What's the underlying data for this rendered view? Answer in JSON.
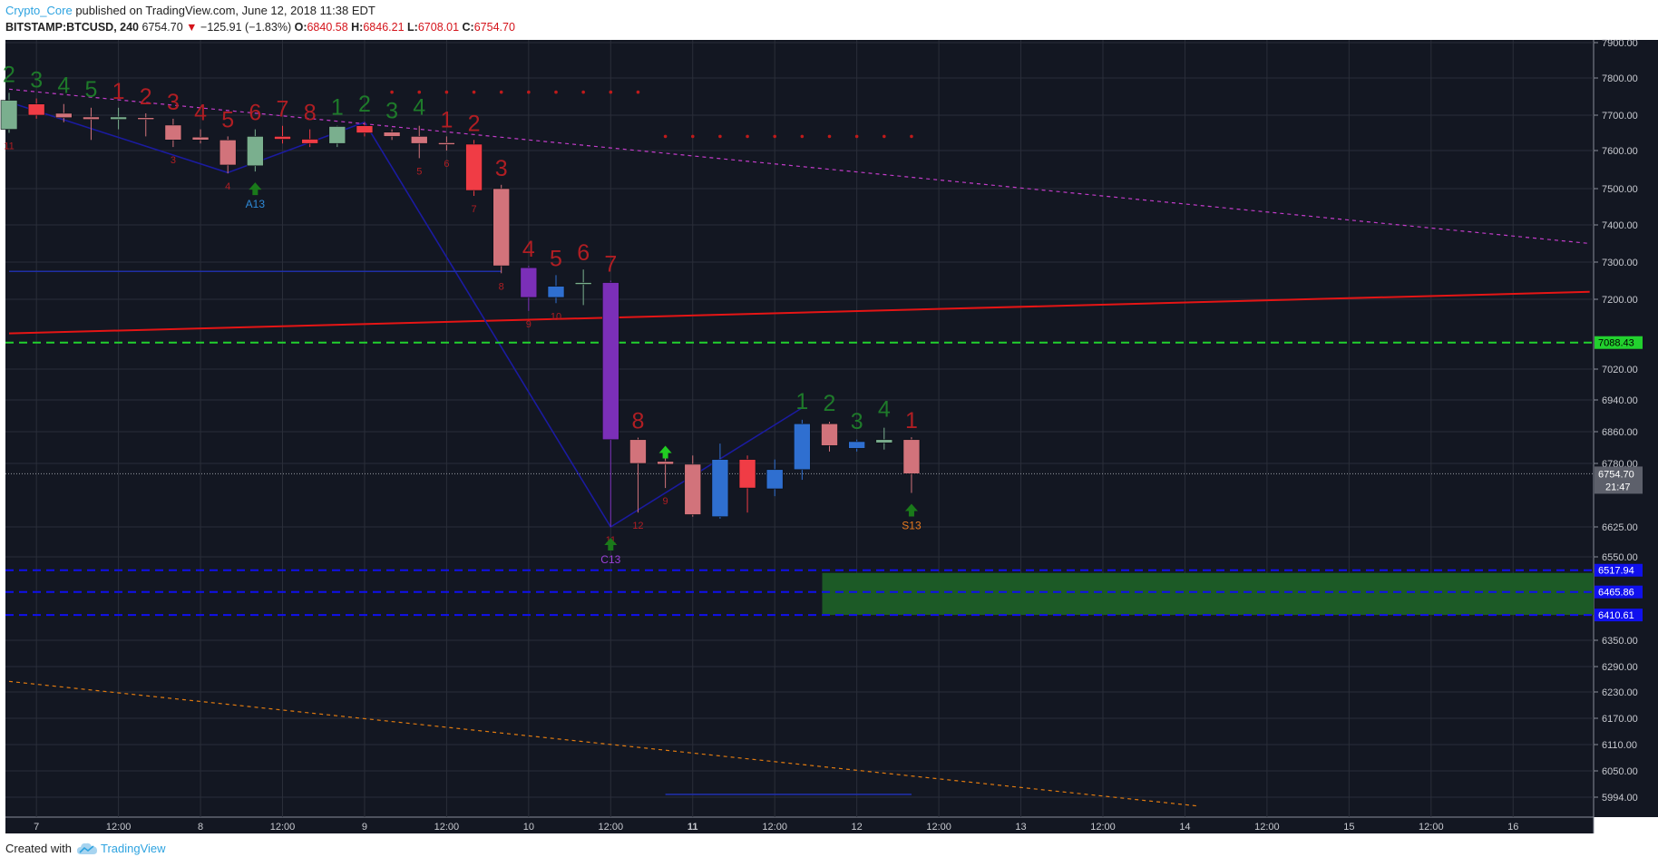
{
  "header": {
    "author": "Crypto_Core",
    "published_text": " published on TradingView.com, June 12, 2018 11:38 EDT",
    "symbol": "BITSTAMP:BTCUSD, 240",
    "last": "6754.70",
    "change": "−125.91 (−1.83%)",
    "open_label": "O:",
    "open": "6840.58",
    "high_label": "H:",
    "high": "6846.21",
    "low_label": "L:",
    "low": "6708.01",
    "close_label": "C:",
    "close": "6754.70"
  },
  "footer": {
    "created_with": "Created with",
    "brand": "TradingView"
  },
  "colors": {
    "background": "#131722",
    "grid": "#2a2e39",
    "bull": "#7aaf8e",
    "bear": "#d2737b",
    "red_bar": "#f03c45",
    "purple_bar": "#7b2fb8",
    "blue_bar": "#2f6fd0",
    "td_green": "#1e7a2a",
    "td_red": "#b01e23",
    "price_label": "#5d606b",
    "level_green": "#22d12e",
    "level_blue": "#1010ee"
  },
  "chart_data": {
    "type": "candlestick",
    "symbol": "BITSTAMP:BTCUSD",
    "interval": "240",
    "y_ticks": [
      7900,
      7800,
      7700,
      7600,
      7500,
      7400,
      7300,
      7200,
      7020,
      6940,
      6860,
      6780,
      6625,
      6550,
      6350,
      6290,
      6230,
      6170,
      6110,
      6050,
      5994
    ],
    "y_tick_labels": [
      "7900.00",
      "7800.00",
      "7700.00",
      "7600.00",
      "7500.00",
      "7400.00",
      "7300.00",
      "7200.00",
      "7020.00",
      "6940.00",
      "6860.00",
      "6780.00",
      "6625.00",
      "6550.00",
      "6350.00",
      "6290.00",
      "6230.00",
      "6170.00",
      "6110.00",
      "6050.00",
      "5994.00"
    ],
    "x_tick_labels": [
      "7",
      "12:00",
      "8",
      "12:00",
      "9",
      "12:00",
      "10",
      "12:00",
      "11",
      "12:00",
      "12",
      "12:00",
      "13",
      "12:00",
      "14",
      "12:00",
      "15",
      "12:00",
      "16"
    ],
    "x_tick_bars": [
      1,
      4,
      7,
      10,
      13,
      16,
      19,
      22,
      25,
      28,
      31,
      34,
      37,
      40,
      43,
      46,
      49,
      52,
      55
    ],
    "x_range": [
      0,
      57.8
    ],
    "candles": [
      {
        "i": 0,
        "o": 7660,
        "h": 7760,
        "l": 7650,
        "c": 7740,
        "color": "bull"
      },
      {
        "i": 1,
        "o": 7730,
        "h": 7745,
        "l": 7690,
        "c": 7700,
        "color": "red_bar"
      },
      {
        "i": 2,
        "o": 7705,
        "h": 7730,
        "l": 7680,
        "c": 7693,
        "color": "bear"
      },
      {
        "i": 3,
        "o": 7695,
        "h": 7720,
        "l": 7630,
        "c": 7688,
        "color": "bear"
      },
      {
        "i": 4,
        "o": 7688,
        "h": 7720,
        "l": 7660,
        "c": 7695,
        "color": "bull"
      },
      {
        "i": 5,
        "o": 7693,
        "h": 7705,
        "l": 7640,
        "c": 7690,
        "color": "bear"
      },
      {
        "i": 6,
        "o": 7672,
        "h": 7690,
        "l": 7610,
        "c": 7630,
        "color": "bear"
      },
      {
        "i": 7,
        "o": 7638,
        "h": 7660,
        "l": 7620,
        "c": 7630,
        "color": "bear"
      },
      {
        "i": 8,
        "o": 7630,
        "h": 7640,
        "l": 7540,
        "c": 7562,
        "color": "bear"
      },
      {
        "i": 9,
        "o": 7560,
        "h": 7660,
        "l": 7545,
        "c": 7640,
        "color": "bull"
      },
      {
        "i": 10,
        "o": 7640,
        "h": 7670,
        "l": 7620,
        "c": 7632,
        "color": "red_bar"
      },
      {
        "i": 11,
        "o": 7632,
        "h": 7660,
        "l": 7610,
        "c": 7620,
        "color": "red_bar"
      },
      {
        "i": 12,
        "o": 7620,
        "h": 7670,
        "l": 7610,
        "c": 7668,
        "color": "bull"
      },
      {
        "i": 13,
        "o": 7670,
        "h": 7680,
        "l": 7640,
        "c": 7650,
        "color": "red_bar"
      },
      {
        "i": 14,
        "o": 7652,
        "h": 7660,
        "l": 7630,
        "c": 7640,
        "color": "bear"
      },
      {
        "i": 15,
        "o": 7640,
        "h": 7670,
        "l": 7580,
        "c": 7620,
        "color": "bear"
      },
      {
        "i": 16,
        "o": 7622,
        "h": 7640,
        "l": 7600,
        "c": 7618,
        "color": "bear"
      },
      {
        "i": 17,
        "o": 7618,
        "h": 7630,
        "l": 7480,
        "c": 7495,
        "color": "red_bar"
      },
      {
        "i": 18,
        "o": 7500,
        "h": 7510,
        "l": 7270,
        "c": 7290,
        "color": "bear"
      },
      {
        "i": 19,
        "o": 7285,
        "h": 7290,
        "l": 7170,
        "c": 7205,
        "color": "purple_bar"
      },
      {
        "i": 20,
        "o": 7205,
        "h": 7265,
        "l": 7190,
        "c": 7235,
        "color": "blue_bar"
      },
      {
        "i": 21,
        "o": 7245,
        "h": 7280,
        "l": 7185,
        "c": 7245,
        "color": "bull"
      },
      {
        "i": 22,
        "o": 7245,
        "h": 7250,
        "l": 6625,
        "c": 6840,
        "color": "purple_bar"
      },
      {
        "i": 23,
        "o": 6840,
        "h": 6845,
        "l": 6660,
        "c": 6780,
        "color": "bear"
      },
      {
        "i": 24,
        "o": 6785,
        "h": 6820,
        "l": 6720,
        "c": 6778,
        "color": "bear"
      },
      {
        "i": 25,
        "o": 6778,
        "h": 6800,
        "l": 6650,
        "c": 6655,
        "color": "bear"
      },
      {
        "i": 26,
        "o": 6650,
        "h": 6830,
        "l": 6645,
        "c": 6790,
        "color": "blue_bar"
      },
      {
        "i": 27,
        "o": 6790,
        "h": 6800,
        "l": 6660,
        "c": 6720,
        "color": "red_bar"
      },
      {
        "i": 28,
        "o": 6718,
        "h": 6790,
        "l": 6700,
        "c": 6765,
        "color": "blue_bar"
      },
      {
        "i": 29,
        "o": 6765,
        "h": 6890,
        "l": 6740,
        "c": 6880,
        "color": "blue_bar"
      },
      {
        "i": 30,
        "o": 6880,
        "h": 6885,
        "l": 6810,
        "c": 6825,
        "color": "bear"
      },
      {
        "i": 31,
        "o": 6818,
        "h": 6840,
        "l": 6810,
        "c": 6835,
        "color": "blue_bar"
      },
      {
        "i": 32,
        "o": 6832,
        "h": 6870,
        "l": 6815,
        "c": 6840,
        "color": "bull"
      },
      {
        "i": 33,
        "o": 6840,
        "h": 6846,
        "l": 6708,
        "c": 6755,
        "color": "bear"
      }
    ],
    "horizontal_levels": [
      {
        "price": 7088.43,
        "label": "7088.43",
        "style": "dashed-green"
      },
      {
        "price": 6517.94,
        "label": "6517.94",
        "style": "dashed-blue"
      },
      {
        "price": 6465.86,
        "label": "6465.86",
        "style": "dashed-blue"
      },
      {
        "price": 6410.61,
        "label": "6410.61",
        "style": "dashed-blue"
      }
    ],
    "last_price": {
      "label": "6754.70",
      "countdown": "21:47",
      "price": 6754.7
    },
    "zone": {
      "from_bar": 30,
      "top": 6517.94,
      "bottom": 6410.61
    },
    "td_labels": [
      {
        "i": 0,
        "t": "2",
        "c": "g"
      },
      {
        "i": 1,
        "t": "3",
        "c": "g"
      },
      {
        "i": 2,
        "t": "4",
        "c": "g"
      },
      {
        "i": 3,
        "t": "5",
        "c": "g"
      },
      {
        "i": 4,
        "t": "1",
        "c": "r"
      },
      {
        "i": 5,
        "t": "2",
        "c": "r"
      },
      {
        "i": 6,
        "t": "3",
        "c": "r"
      },
      {
        "i": 7,
        "t": "4",
        "c": "r"
      },
      {
        "i": 8,
        "t": "5",
        "c": "r"
      },
      {
        "i": 9,
        "t": "6",
        "c": "r"
      },
      {
        "i": 10,
        "t": "7",
        "c": "r"
      },
      {
        "i": 11,
        "t": "8",
        "c": "r"
      },
      {
        "i": 12,
        "t": "1",
        "c": "g"
      },
      {
        "i": 13,
        "t": "2",
        "c": "g"
      },
      {
        "i": 14,
        "t": "3",
        "c": "g"
      },
      {
        "i": 15,
        "t": "4",
        "c": "g"
      },
      {
        "i": 16,
        "t": "1",
        "c": "r"
      },
      {
        "i": 17,
        "t": "2",
        "c": "r"
      },
      {
        "i": 18,
        "t": "3",
        "c": "r"
      },
      {
        "i": 19,
        "t": "4",
        "c": "r"
      },
      {
        "i": 20,
        "t": "5",
        "c": "r"
      },
      {
        "i": 21,
        "t": "6",
        "c": "r"
      },
      {
        "i": 22,
        "t": "7",
        "c": "r"
      },
      {
        "i": 23,
        "t": "8",
        "c": "r"
      },
      {
        "i": 29,
        "t": "1",
        "c": "g"
      },
      {
        "i": 30,
        "t": "2",
        "c": "g"
      },
      {
        "i": 31,
        "t": "3",
        "c": "g"
      },
      {
        "i": 32,
        "t": "4",
        "c": "g"
      },
      {
        "i": 33,
        "t": "1",
        "c": "r"
      }
    ],
    "small_counts": [
      {
        "i": 0,
        "t": "11"
      },
      {
        "i": 6,
        "t": "3"
      },
      {
        "i": 8,
        "t": "4"
      },
      {
        "i": 15,
        "t": "5"
      },
      {
        "i": 16,
        "t": "6"
      },
      {
        "i": 17,
        "t": "7"
      },
      {
        "i": 18,
        "t": "8"
      },
      {
        "i": 19,
        "t": "9"
      },
      {
        "i": 20,
        "t": "10"
      },
      {
        "i": 22,
        "t": "11"
      },
      {
        "i": 23,
        "t": "12"
      },
      {
        "i": 24,
        "t": "9"
      }
    ],
    "signals": [
      {
        "i": 9,
        "t": "A13",
        "color": "#2e8ad8"
      },
      {
        "i": 22,
        "t": "C13",
        "color": "#9b3fd8"
      },
      {
        "i": 24,
        "t": "",
        "color": "#22cc22"
      },
      {
        "i": 33,
        "t": "S13",
        "color": "#e87a1e"
      }
    ],
    "trendlines": [
      {
        "type": "red_solid",
        "x1": 0,
        "y1": 7112,
        "x2": 57.8,
        "y2": 7220
      },
      {
        "type": "magenta_dashed",
        "x1": 0,
        "y1": 7770,
        "x2": 57.8,
        "y2": 7350
      },
      {
        "type": "orange_dashed",
        "x1": 0,
        "y1": 6255,
        "x2": 43.5,
        "y2": 5975
      },
      {
        "type": "navy_zigzag",
        "points": [
          [
            0,
            7735
          ],
          [
            8,
            7542
          ],
          [
            13,
            7680
          ],
          [
            22,
            6625
          ],
          [
            29,
            6920
          ]
        ]
      },
      {
        "type": "navy_hline",
        "x1": 0,
        "y1": 7275,
        "x2": 18,
        "y2": 7275
      },
      {
        "type": "navy_hline",
        "x1": 24,
        "y1": 6000,
        "x2": 33,
        "y2": 6000
      }
    ],
    "resistance_dots": [
      {
        "from": 14,
        "to": 23,
        "price": 7762
      },
      {
        "from": 24,
        "to": 33,
        "price": 7640
      }
    ]
  }
}
